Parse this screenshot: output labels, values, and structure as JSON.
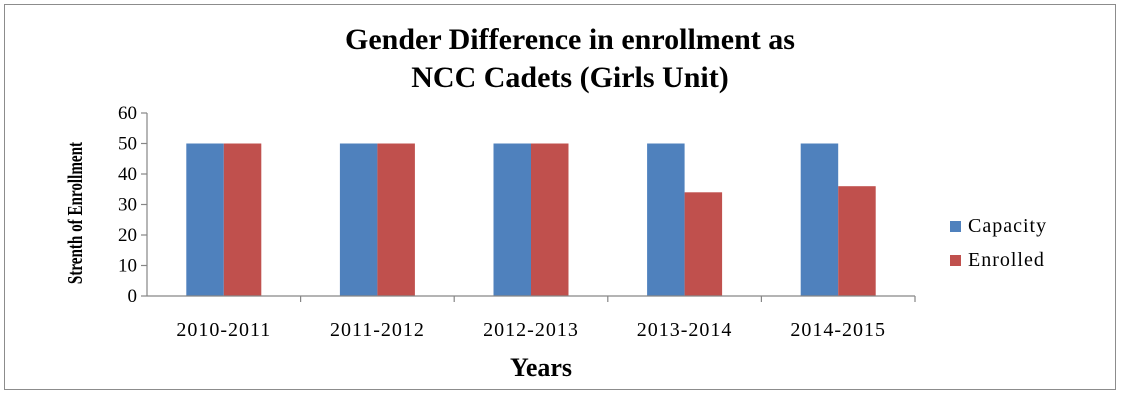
{
  "chart_data": {
    "type": "bar",
    "title_lines": [
      "Gender Difference in enrollment as",
      "NCC Cadets (Girls Unit)"
    ],
    "xlabel": "Years",
    "ylabel": "Strenth of Enrollment",
    "categories": [
      "2010-2011",
      "2011-2012",
      "2012-2013",
      "2013-2014",
      "2014-2015"
    ],
    "series": [
      {
        "name": "Capacity",
        "values": [
          50,
          50,
          50,
          50,
          50
        ],
        "color": "#4F81BD"
      },
      {
        "name": "Enrolled",
        "values": [
          50,
          50,
          50,
          34,
          36
        ],
        "color": "#C0504D"
      }
    ],
    "ylim": [
      0,
      60
    ],
    "yticks": [
      0,
      10,
      20,
      30,
      40,
      50,
      60
    ],
    "grid": false,
    "legend_position": "right"
  }
}
